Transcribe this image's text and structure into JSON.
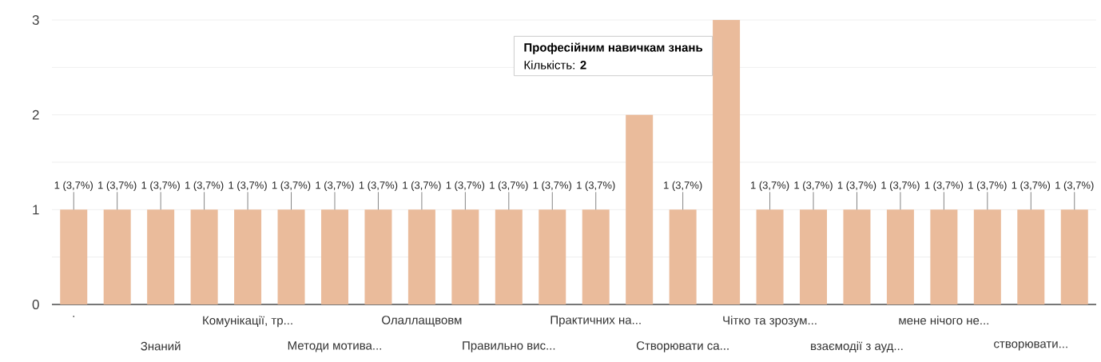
{
  "chart_data": {
    "type": "bar",
    "categories": [
      ".",
      null,
      "Знаний",
      null,
      "Комунікації, тр...",
      null,
      "Методи мотива...",
      null,
      "Олаллащвовм",
      null,
      "Правильно вис...",
      null,
      "Практичних на...",
      null,
      "Створювати са...",
      null,
      "Чітко та зрозум...",
      null,
      "взаємодії з ауд...",
      null,
      "мене нічого не...",
      null,
      "створювати...",
      null
    ],
    "values": [
      1,
      1,
      1,
      1,
      1,
      1,
      1,
      1,
      1,
      1,
      1,
      1,
      1,
      2,
      1,
      3,
      1,
      1,
      1,
      1,
      1,
      1,
      1,
      1
    ],
    "value_labels": [
      "1 (3,7%)",
      "1 (3,7%)",
      "1 (3,7%)",
      "1 (3,7%)",
      "1 (3,7%)",
      "1 (3,7%)",
      "1 (3,7%)",
      "1 (3,7%)",
      "1 (3,7%)",
      "1 (3,7%)",
      "1 (3,7%)",
      "1 (3,7%)",
      "1 (3,7%)",
      null,
      "1 (3,7%)",
      null,
      "1 (3,7%)",
      "1 (3,7%)",
      "1 (3,7%)",
      "1 (3,7%)",
      "1 (3,7%)",
      "1 (3,7%)",
      "1 (3,7%)",
      "1 (3,7%)"
    ],
    "color": "#eabb9b",
    "ylim": [
      0,
      3
    ],
    "yticks": [
      0,
      {
        "value": 0.5,
        "label": null
      },
      1,
      {
        "value": 1.5,
        "label": null
      },
      2,
      {
        "value": 2.5,
        "label": null
      },
      3
    ],
    "grid": "y",
    "annotations": [
      "Професійним навичкам знань",
      "Кількість: **2**"
    ]
  }
}
